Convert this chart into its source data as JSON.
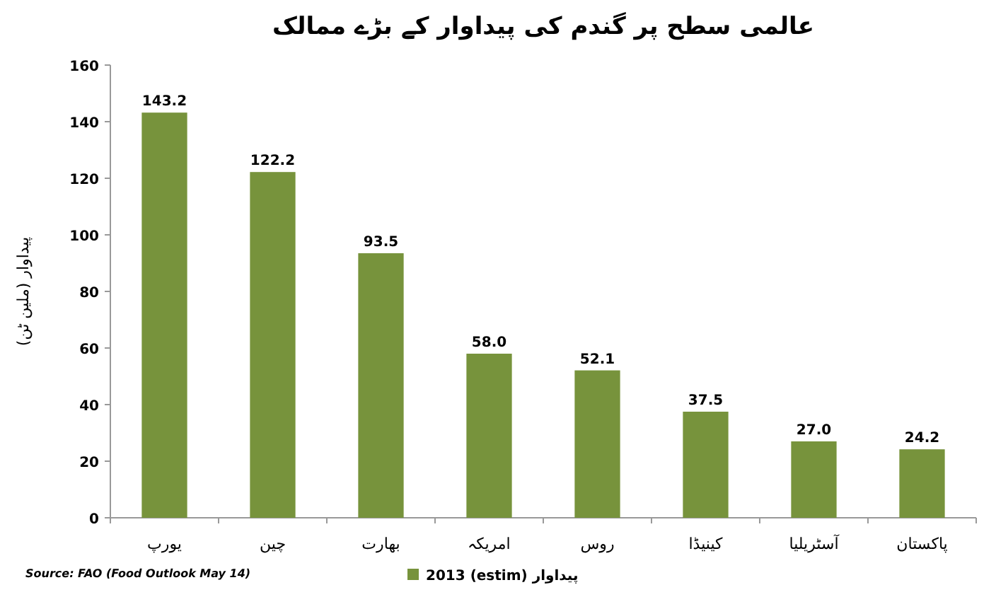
{
  "chart_data": {
    "type": "bar",
    "title": "عالمی سطح پر گندم کی پیداوار کے بڑے ممالک",
    "ylabel": "پیداوار (ملین ٹن)",
    "categories": [
      "یورپ",
      "چین",
      "بھارت",
      "امریکہ",
      "روس",
      "کینیڈا",
      "آسٹریلیا",
      "پاکستان"
    ],
    "series": [
      {
        "name": "2013 (estim) پیداوار",
        "color": "#77933c",
        "values": [
          143.2,
          122.2,
          93.5,
          58.0,
          52.1,
          37.5,
          27.0,
          24.2
        ],
        "value_labels": [
          "143.2",
          "122.2",
          "93.5",
          "58.0",
          "52.1",
          "37.5",
          "27.0",
          "24.2"
        ]
      }
    ],
    "ylim": [
      0,
      160
    ],
    "yticks": [
      0,
      20,
      40,
      60,
      80,
      100,
      120,
      140,
      160
    ],
    "legend": "bottom",
    "annotations": [
      "Source: FAO (Food Outlook May 14)"
    ]
  }
}
